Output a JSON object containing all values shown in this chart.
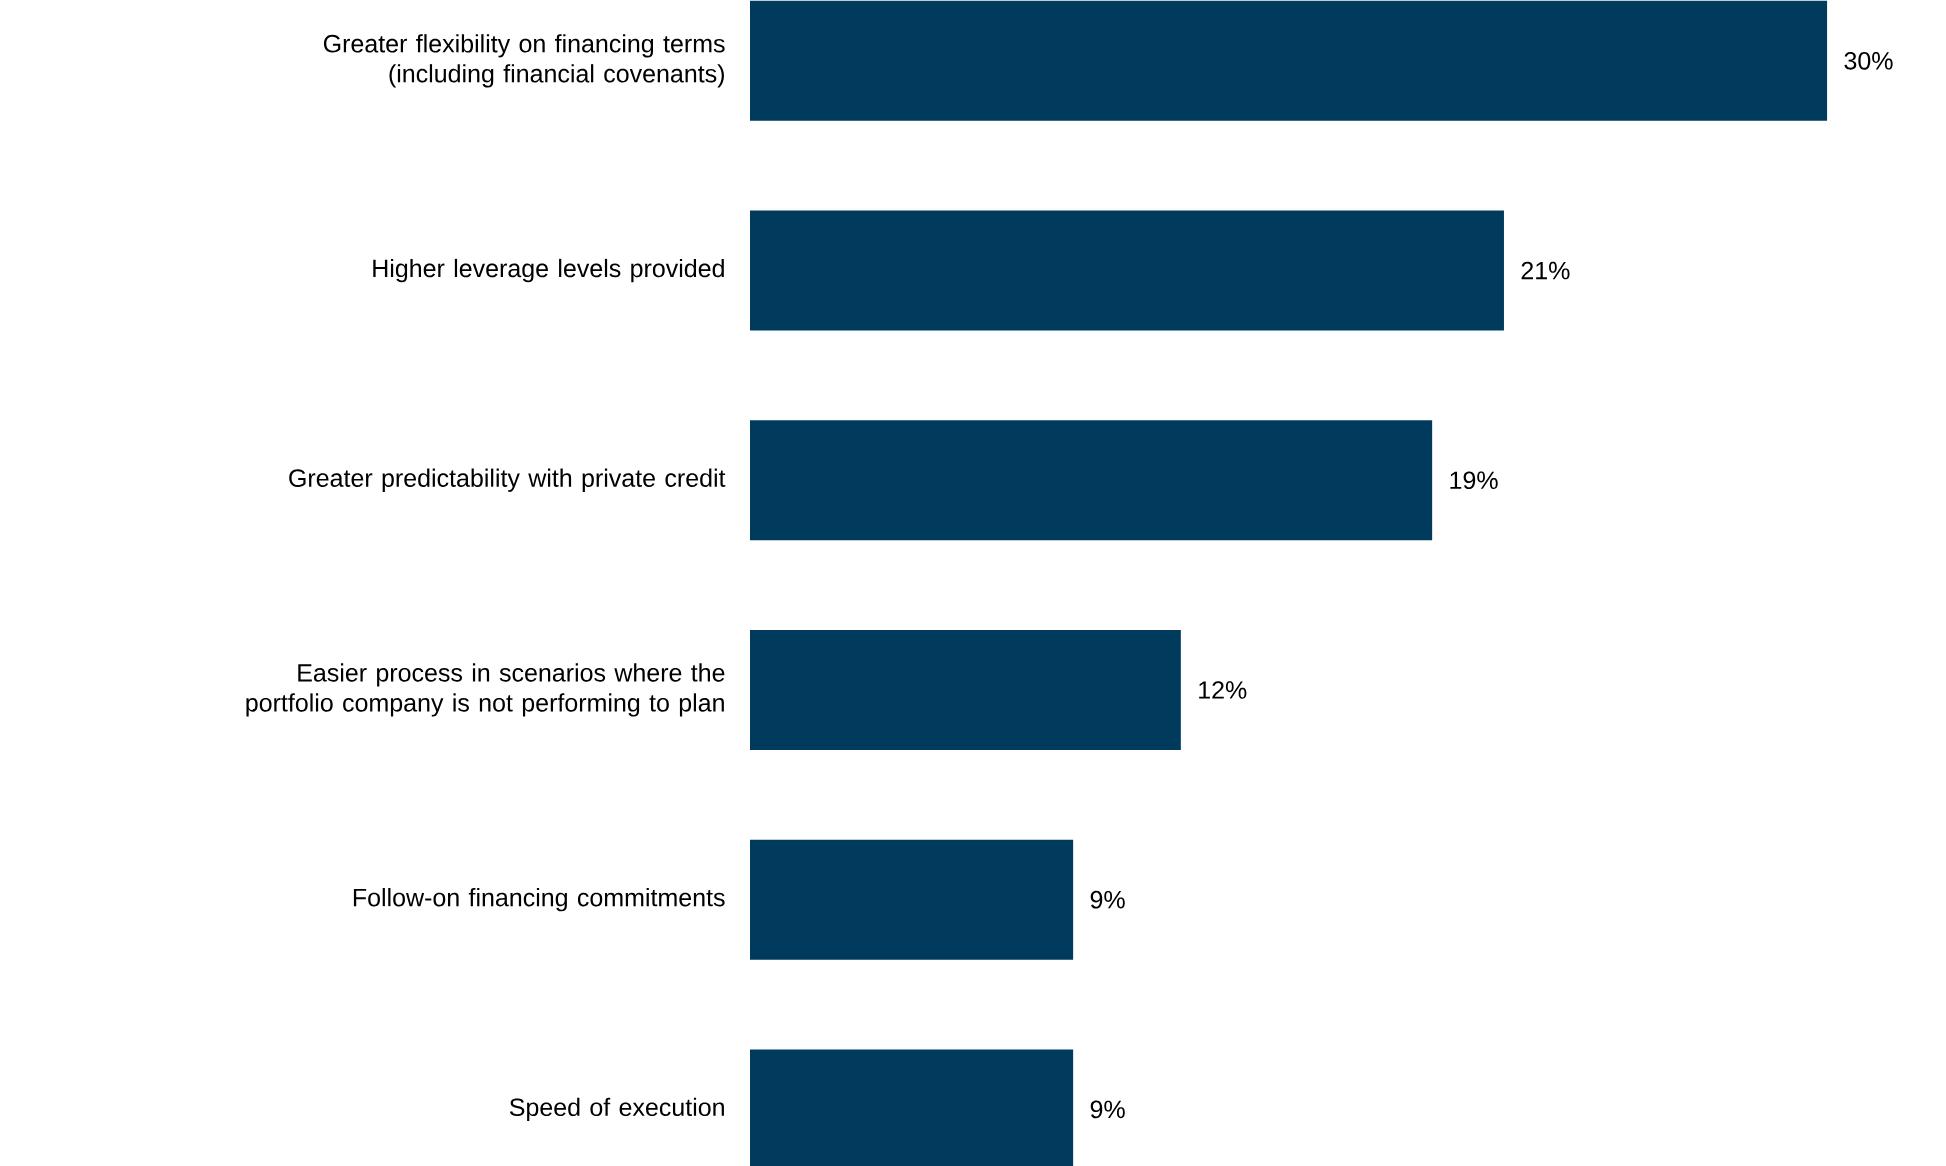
{
  "chart_data": {
    "type": "bar",
    "orientation": "horizontal",
    "tick_labels": "y",
    "categories": [
      "Greater flexibility on financing terms (including financial covenants)",
      "Higher leverage levels provided",
      "Greater predictability with private credit",
      "Easier process in scenarios where the portfolio company is not performing to plan",
      "Follow-on financing commitments",
      "Speed of execution"
    ],
    "values": [
      30,
      21,
      19,
      12,
      9,
      9
    ],
    "value_labels": [
      "30%",
      "21%",
      "19%",
      "12%",
      "9%",
      "9%"
    ],
    "color": "#003a5d"
  }
}
